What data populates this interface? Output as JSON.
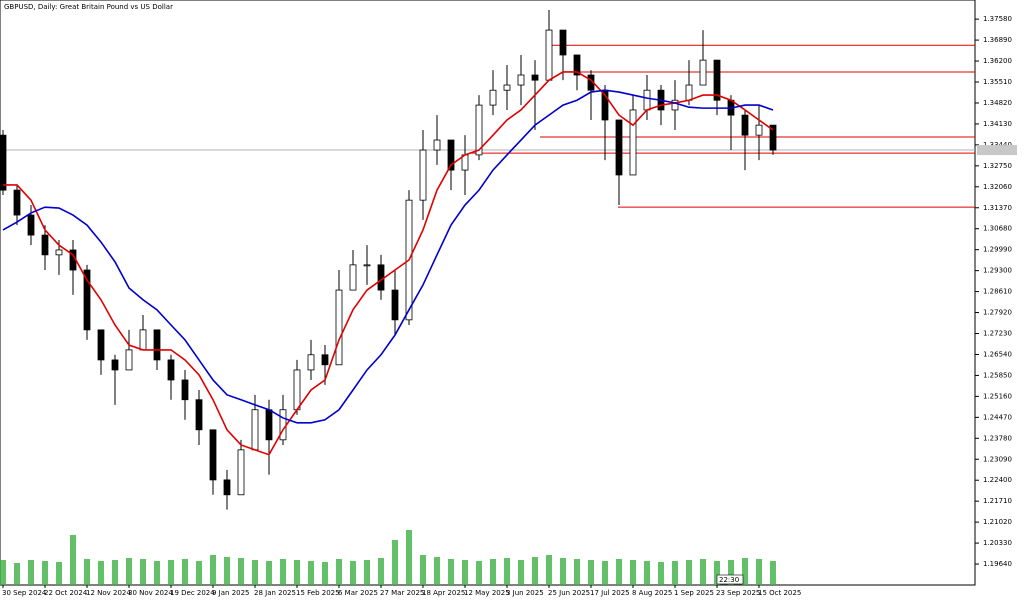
{
  "chart_data": {
    "type": "candlestick",
    "title": "GBPUSD, Daily:  Great Britain Pound vs US Dollar",
    "categories": [
      "30 Sep 2024",
      null,
      null,
      "22 Oct 2024",
      null,
      null,
      "12 Nov 2024",
      null,
      null,
      "30 Nov 2024",
      null,
      null,
      "19 Dec 2024",
      null,
      null,
      "9 Jan 2025",
      null,
      null,
      "28 Jan 2025",
      null,
      null,
      "15 Feb 2025",
      null,
      null,
      "6 Mar 2025",
      null,
      null,
      "27 Mar 2025",
      null,
      null,
      "18 Apr 2025",
      null,
      null,
      "12 May 2025",
      null,
      null,
      "3 Jun 2025",
      null,
      null,
      "25 Jun 2025",
      null,
      null,
      "17 Jul 2025",
      null,
      null,
      "8 Aug 2025",
      null,
      null,
      "1 Sep 2025",
      null,
      null,
      "23 Sep 2025",
      null,
      null,
      "15 Oct 2025",
      null
    ],
    "open": [
      1.3376,
      1.3195,
      1.3113,
      1.3047,
      1.2982,
      1.2998,
      1.2932,
      1.2735,
      1.2636,
      1.2603,
      1.2669,
      1.2735,
      1.2636,
      1.257,
      1.2505,
      1.2406,
      1.2241,
      1.2192,
      1.234,
      1.2472,
      1.2373,
      1.2472,
      1.2603,
      1.2653,
      1.262,
      1.2866,
      1.2949,
      1.2949,
      1.2866,
      1.2768,
      1.3162,
      1.3327,
      1.336,
      1.3261,
      1.3311,
      1.3475,
      1.3524,
      1.3541,
      1.3574,
      1.3557,
      1.3722,
      1.364,
      1.3574,
      1.3524,
      1.3426,
      1.3245,
      1.3459,
      1.3524,
      1.3459,
      1.3491,
      1.3541,
      1.3623,
      1.3491,
      1.3442,
      1.3376,
      1.3409
    ],
    "high": [
      1.3393,
      1.3212,
      1.3146,
      1.308,
      1.3031,
      1.3031,
      1.2949,
      1.2735,
      1.2653,
      1.2735,
      1.2784,
      1.2735,
      1.2653,
      1.2603,
      1.2537,
      1.2406,
      1.2274,
      1.2373,
      1.2521,
      1.2505,
      1.2521,
      1.2636,
      1.2702,
      1.2685,
      1.2932,
      1.2998,
      1.3014,
      1.2982,
      1.2932,
      1.3195,
      1.3393,
      1.3442,
      1.336,
      1.3376,
      1.3508,
      1.359,
      1.3607,
      1.364,
      1.3623,
      1.3788,
      1.3722,
      1.364,
      1.359,
      1.3541,
      1.3426,
      1.3508,
      1.3574,
      1.3541,
      1.3557,
      1.3623,
      1.3722,
      1.3623,
      1.3508,
      1.3459,
      1.3475,
      1.3409
    ],
    "low": [
      1.3179,
      1.308,
      1.3014,
      1.2932,
      1.2916,
      1.285,
      1.2702,
      1.2587,
      1.2488,
      1.2603,
      1.2669,
      1.2603,
      1.2505,
      1.2439,
      1.2356,
      1.2192,
      1.2143,
      1.2192,
      1.234,
      1.2258,
      1.2356,
      1.2455,
      1.257,
      1.2554,
      1.262,
      1.2866,
      1.2883,
      1.2834,
      1.2718,
      1.2751,
      1.3097,
      1.3278,
      1.3195,
      1.3179,
      1.3294,
      1.3442,
      1.3459,
      1.3475,
      1.3393,
      1.3557,
      1.3557,
      1.3524,
      1.3426,
      1.3294,
      1.3146,
      1.3245,
      1.3426,
      1.3409,
      1.3393,
      1.3475,
      1.3541,
      1.3442,
      1.3327,
      1.3261,
      1.3294,
      1.3311
    ],
    "close": [
      1.3195,
      1.3113,
      1.3047,
      1.2982,
      1.2998,
      1.2932,
      1.2735,
      1.2636,
      1.2603,
      1.2669,
      1.2735,
      1.2636,
      1.257,
      1.2505,
      1.2406,
      1.2241,
      1.2192,
      1.234,
      1.2472,
      1.2373,
      1.2472,
      1.2603,
      1.2653,
      1.262,
      1.2866,
      1.2949,
      1.2949,
      1.2866,
      1.2768,
      1.3162,
      1.3327,
      1.336,
      1.3261,
      1.3311,
      1.3475,
      1.3524,
      1.3541,
      1.3574,
      1.3557,
      1.3722,
      1.364,
      1.3574,
      1.3524,
      1.3426,
      1.3245,
      1.3459,
      1.3524,
      1.3459,
      1.3491,
      1.3541,
      1.3623,
      1.3491,
      1.3442,
      1.3376,
      1.3409,
      1.3327
    ],
    "series": [
      {
        "color": "#e00000",
        "values": [
          1.3212,
          1.3212,
          1.3162,
          1.3064,
          1.3014,
          1.2982,
          1.2899,
          1.2834,
          1.2751,
          1.2685,
          1.2669,
          1.2669,
          1.2669,
          1.2636,
          1.2587,
          1.2505,
          1.2406,
          1.2356,
          1.234,
          1.2324,
          1.2406,
          1.2472,
          1.2537,
          1.257,
          1.2702,
          1.2801,
          1.2866,
          1.2899,
          1.2932,
          1.2965,
          1.3064,
          1.3195,
          1.3278,
          1.3311,
          1.3327,
          1.3376,
          1.3426,
          1.3459,
          1.3508,
          1.3557,
          1.3584,
          1.3584,
          1.3557,
          1.3508,
          1.3442,
          1.3409,
          1.3459,
          1.3475,
          1.3482,
          1.3491,
          1.3508,
          1.3508,
          1.3491,
          1.3459,
          1.3426,
          1.3393
        ]
      },
      {
        "color": "#0000cc",
        "values": [
          1.3064,
          1.309,
          1.312,
          1.3139,
          1.3136,
          1.3113,
          1.308,
          1.3024,
          1.2959,
          1.2873,
          1.2834,
          1.2801,
          1.2751,
          1.2702,
          1.2636,
          1.257,
          1.2521,
          1.2505,
          1.2488,
          1.2472,
          1.2445,
          1.2429,
          1.2429,
          1.2439,
          1.2472,
          1.2537,
          1.2603,
          1.2653,
          1.2718,
          1.2801,
          1.2883,
          1.2982,
          1.308,
          1.3146,
          1.3195,
          1.3261,
          1.3311,
          1.336,
          1.3409,
          1.3442,
          1.3475,
          1.3491,
          1.3518,
          1.3524,
          1.3518,
          1.3508,
          1.3498,
          1.3491,
          1.3482,
          1.3468,
          1.3465,
          1.3465,
          1.3465,
          1.3475,
          1.3475,
          1.3459
        ]
      }
    ],
    "volume": [
      25,
      22,
      25,
      24,
      23,
      50,
      26,
      24,
      25,
      27,
      26,
      24,
      25,
      26,
      24,
      30,
      28,
      27,
      25,
      24,
      26,
      25,
      24,
      23,
      26,
      24,
      25,
      27,
      45,
      55,
      30,
      28,
      26,
      25,
      24,
      26,
      27,
      25,
      28,
      30,
      27,
      26,
      25,
      24,
      26,
      25,
      24,
      23,
      24,
      25,
      26,
      24,
      25,
      27,
      26,
      24
    ],
    "volume_color": "#3cb043",
    "levels": [
      1.3672,
      1.3584,
      1.337,
      1.3317,
      1.3139
    ],
    "level_color": "#e00000",
    "last_price": 1.3327,
    "time_marker": "22:30",
    "ylim": [
      1.1895,
      1.3821
    ],
    "yticks": [
      {
        "value": 1.3758,
        "label": "1.37580"
      },
      {
        "value": 1.3689,
        "label": "1.36890"
      },
      {
        "value": 1.362,
        "label": "1.36200"
      },
      {
        "value": 1.3551,
        "label": "1.35510"
      },
      {
        "value": 1.3482,
        "label": "1.34820"
      },
      {
        "value": 1.3413,
        "label": "1.34130"
      },
      {
        "value": 1.3344,
        "label": "1.33440"
      },
      {
        "value": 1.3275,
        "label": "1.32750"
      },
      {
        "value": 1.3206,
        "label": "1.32060"
      },
      {
        "value": 1.3137,
        "label": "1.31370"
      },
      {
        "value": 1.3068,
        "label": "1.30680"
      },
      {
        "value": 1.2999,
        "label": "1.29990"
      },
      {
        "value": 1.293,
        "label": "1.29300"
      },
      {
        "value": 1.2861,
        "label": "1.28610"
      },
      {
        "value": 1.2792,
        "label": "1.27920"
      },
      {
        "value": 1.2723,
        "label": "1.27230"
      },
      {
        "value": 1.2654,
        "label": "1.26540"
      },
      {
        "value": 1.2585,
        "label": "1.25850"
      },
      {
        "value": 1.2516,
        "label": "1.25160"
      },
      {
        "value": 1.2447,
        "label": "1.24470"
      },
      {
        "value": 1.2378,
        "label": "1.23780"
      },
      {
        "value": 1.2309,
        "label": "1.23090"
      },
      {
        "value": 1.224,
        "label": "1.22400"
      },
      {
        "value": 1.2171,
        "label": "1.21710"
      },
      {
        "value": 1.2102,
        "label": "1.21020"
      },
      {
        "value": 1.2033,
        "label": "1.20330"
      },
      {
        "value": 1.1964,
        "label": "1.19640"
      }
    ]
  }
}
